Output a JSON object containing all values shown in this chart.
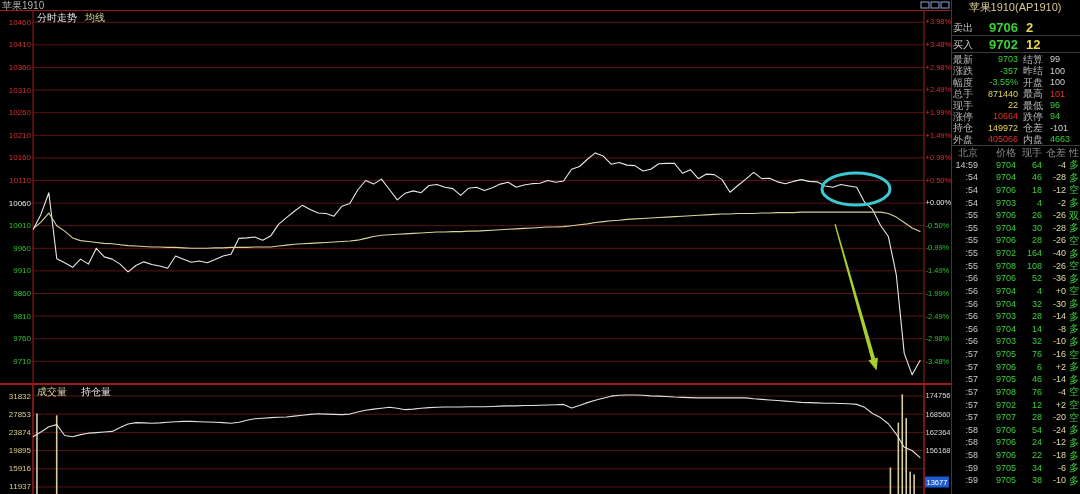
{
  "chart_data": [
    {
      "type": "line",
      "title": "苹果1910",
      "categories": [
        null,
        null,
        null,
        null,
        null,
        null,
        null,
        null,
        null,
        null,
        null,
        null,
        null,
        null,
        null,
        null,
        null,
        null,
        null,
        null,
        null,
        null,
        null,
        null,
        null,
        null,
        null,
        null,
        null,
        null,
        null,
        null,
        null,
        null,
        null,
        null,
        null,
        null,
        null,
        null,
        null,
        null,
        null,
        null,
        null,
        null,
        null,
        null,
        null,
        null,
        null,
        null,
        null,
        null,
        null,
        null,
        null,
        null,
        null,
        null,
        null,
        null,
        null,
        null,
        null,
        null,
        null,
        null,
        null,
        null,
        null,
        null,
        null,
        null,
        null,
        null,
        null,
        null,
        null,
        null,
        null,
        null,
        null,
        null,
        null,
        null,
        null,
        null,
        null,
        null,
        null,
        null,
        null,
        null,
        null,
        null,
        null,
        null,
        null,
        null,
        null,
        null,
        null,
        null,
        null,
        null,
        null,
        null,
        null,
        null,
        null,
        null,
        null
      ],
      "series": [
        {
          "name": "分时走势",
          "color": "#e8e8e8",
          "values": [
            10001,
            10035,
            10083,
            9937,
            9928,
            9918,
            9936,
            9925,
            9960,
            9941,
            9936,
            9925,
            9908,
            9922,
            9930,
            9924,
            9921,
            9916,
            9943,
            9936,
            9929,
            9932,
            9928,
            9935,
            9943,
            9947,
            9982,
            9983,
            9985,
            9978,
            9987,
            10013,
            10028,
            10042,
            10055,
            10046,
            10038,
            10037,
            10031,
            10053,
            10059,
            10089,
            10110,
            10102,
            10113,
            10090,
            10067,
            10082,
            10087,
            10083,
            10099,
            10101,
            10095,
            10092,
            10077,
            10093,
            10095,
            10088,
            10094,
            10102,
            10106,
            10095,
            10100,
            10103,
            10104,
            10110,
            10106,
            10109,
            10135,
            10141,
            10157,
            10171,
            10164,
            10146,
            10150,
            10144,
            10143,
            10131,
            10135,
            10147,
            10148,
            10148,
            10126,
            10134,
            10114,
            10124,
            10123,
            10112,
            10084,
            10099,
            10113,
            10128,
            10114,
            10115,
            10107,
            10103,
            10108,
            10112,
            10108,
            10107,
            10098,
            10095,
            10101,
            10098,
            10095,
            10062,
            10046,
            10011,
            9986,
            9902,
            9728,
            9680,
            9712
          ]
        },
        {
          "name": "均线",
          "color": "#d8d49a",
          "values": [
            10003,
            10018,
            10038,
            10010,
            9998,
            9983,
            9977,
            9975,
            9973,
            9971,
            9970,
            9968,
            9966,
            9965,
            9964,
            9963,
            9963,
            9962,
            9962,
            9961,
            9960,
            9960,
            9960,
            9961,
            9961,
            9962,
            9962,
            9962,
            9963,
            9963,
            9963,
            9965,
            9967,
            9969,
            9970,
            9971,
            9972,
            9973,
            9974,
            9975,
            9976,
            9978,
            9982,
            9986,
            9989,
            9990,
            9991,
            9992,
            9993,
            9994,
            9995,
            9996,
            9996,
            9997,
            9997,
            9998,
            9998,
            9999,
            10000,
            10001,
            10002,
            10003,
            10004,
            10005,
            10006,
            10007,
            10007,
            10008,
            10010,
            10012,
            10014,
            10017,
            10019,
            10021,
            10022,
            10024,
            10025,
            10026,
            10027,
            10028,
            10029,
            10030,
            10031,
            10032,
            10033,
            10034,
            10035,
            10036,
            10036,
            10037,
            10037,
            10037,
            10038,
            10038,
            10039,
            10039,
            10039,
            10040,
            10040,
            10040,
            10040,
            10040,
            10040,
            10040,
            10040,
            10040,
            10040,
            10040,
            10037,
            10029,
            10017,
            10005,
            9997
          ]
        }
      ],
      "ylim": [
        9662,
        10485
      ],
      "yticks": [
        9710,
        9760,
        9810,
        9860,
        9910,
        9960,
        10010,
        10060,
        10110,
        10160,
        10210,
        10260,
        10310,
        10360,
        10410,
        10460
      ],
      "y2lim": [
        -3.96,
        4.22
      ],
      "y2ticks": [
        {
          "value": 3.98,
          "label": "+3.98%"
        },
        {
          "value": 3.48,
          "label": "+3.48%"
        },
        {
          "value": 2.98,
          "label": "+2.98%"
        },
        {
          "value": 2.49,
          "label": "+2.49%"
        },
        {
          "value": 1.99,
          "label": "+1.99%"
        },
        {
          "value": 1.49,
          "label": "+1.49%"
        },
        {
          "value": 0.99,
          "label": "+0.99%"
        },
        {
          "value": 0.5,
          "label": "+0.50%"
        },
        {
          "value": 0,
          "label": "+0.00%"
        },
        {
          "value": -0.5,
          "label": "-0.50%"
        },
        {
          "value": -0.99,
          "label": "-0.99%"
        },
        {
          "value": -1.49,
          "label": "-1.49%"
        },
        {
          "value": -1.99,
          "label": "-1.99%"
        },
        {
          "value": -2.49,
          "label": "-2.49%"
        },
        {
          "value": -2.98,
          "label": "-2.98%"
        },
        {
          "value": -3.48,
          "label": "-3.48%"
        }
      ],
      "grid": "y",
      "legend": "top left"
    },
    {
      "type": "bar",
      "categories": [
        null,
        null,
        null,
        null,
        null,
        null,
        null,
        null,
        null,
        null,
        null,
        null,
        null,
        null,
        null,
        null,
        null,
        null,
        null,
        null,
        null,
        null,
        null,
        null,
        null,
        null,
        null,
        null,
        null,
        null,
        null,
        null,
        null,
        null,
        null,
        null,
        null,
        null,
        null,
        null,
        null,
        null,
        null,
        null,
        null,
        null,
        null,
        null,
        null,
        null,
        null,
        null,
        null,
        null,
        null,
        null,
        null,
        null,
        null,
        null,
        null,
        null,
        null,
        null,
        null,
        null,
        null,
        null,
        null,
        null,
        null,
        null,
        null,
        null,
        null,
        null,
        null,
        null,
        null,
        null,
        null,
        null,
        null,
        null,
        null,
        null,
        null,
        null,
        null,
        null,
        null,
        null,
        null,
        null,
        null,
        null,
        null,
        null,
        null,
        null,
        null,
        null,
        null,
        null,
        null,
        null,
        null,
        null,
        null,
        null,
        null,
        null,
        null,
        null,
        null,
        null,
        null,
        null,
        null,
        null,
        null,
        null,
        null,
        null,
        null,
        null,
        null,
        null,
        null,
        null,
        null,
        null,
        null,
        null,
        null,
        null,
        null,
        null,
        null,
        null,
        null,
        null,
        null,
        null,
        null,
        null,
        null,
        null,
        null,
        null,
        null,
        null,
        null,
        null,
        null,
        null,
        null,
        null,
        null,
        null,
        null,
        null,
        null,
        null,
        null,
        null,
        null,
        null,
        null,
        null,
        null,
        null,
        null,
        null,
        null,
        null,
        null,
        null,
        null,
        null,
        null,
        null,
        null,
        null,
        null,
        null,
        null,
        null,
        null,
        null,
        null,
        null,
        null,
        null,
        null,
        null,
        null,
        null,
        null,
        null,
        null,
        null,
        null,
        null,
        null,
        null,
        null,
        null,
        null,
        null,
        null,
        null,
        null,
        null,
        null,
        null,
        null,
        null,
        null,
        null,
        null,
        null,
        null,
        null,
        null,
        null
      ],
      "series": [
        {
          "name": "成交量",
          "color": "#d8d0a0",
          "values": [
            null,
            28000,
            null,
            null,
            null,
            null,
            27600,
            null,
            null,
            null,
            null,
            null,
            null,
            null,
            null,
            null,
            null,
            null,
            null,
            null,
            null,
            null,
            null,
            null,
            null,
            null,
            null,
            null,
            null,
            null,
            null,
            null,
            null,
            null,
            null,
            null,
            null,
            null,
            null,
            null,
            null,
            null,
            null,
            null,
            null,
            null,
            null,
            null,
            null,
            null,
            null,
            null,
            null,
            null,
            null,
            null,
            null,
            null,
            null,
            null,
            null,
            null,
            null,
            null,
            null,
            null,
            null,
            null,
            null,
            null,
            null,
            null,
            null,
            null,
            null,
            null,
            null,
            null,
            null,
            null,
            null,
            null,
            null,
            null,
            null,
            null,
            null,
            null,
            null,
            null,
            null,
            null,
            null,
            null,
            null,
            null,
            null,
            null,
            null,
            null,
            null,
            null,
            null,
            null,
            null,
            null,
            null,
            null,
            null,
            null,
            null,
            null,
            null,
            null,
            null,
            null,
            null,
            null,
            null,
            null,
            null,
            null,
            null,
            null,
            null,
            null,
            null,
            null,
            null,
            null,
            null,
            null,
            null,
            null,
            null,
            null,
            null,
            null,
            null,
            null,
            null,
            null,
            null,
            null,
            null,
            null,
            null,
            null,
            null,
            null,
            null,
            null,
            null,
            null,
            null,
            null,
            null,
            null,
            null,
            null,
            null,
            null,
            null,
            null,
            null,
            null,
            null,
            null,
            null,
            null,
            null,
            null,
            null,
            null,
            null,
            null,
            null,
            null,
            null,
            null,
            null,
            null,
            null,
            null,
            null,
            null,
            null,
            null,
            null,
            null,
            null,
            null,
            null,
            null,
            null,
            null,
            null,
            null,
            null,
            null,
            null,
            null,
            null,
            null,
            null,
            null,
            null,
            null,
            null,
            null,
            null,
            null,
            null,
            null,
            null,
            null,
            null,
            16200,
            null,
            26000,
            32200,
            27000,
            15300,
            14700,
            null,
            null
          ]
        }
      ],
      "ylim": [
        10400,
        34240
      ],
      "yticks": [
        31832,
        27853,
        23874,
        19895,
        15916,
        11937
      ],
      "grid": "y",
      "legend": "top left"
    },
    {
      "type": "line",
      "categories": [
        null,
        null,
        null,
        null,
        null,
        null,
        null,
        null,
        null,
        null,
        null,
        null,
        null,
        null,
        null,
        null,
        null,
        null,
        null,
        null,
        null,
        null,
        null,
        null,
        null,
        null,
        null,
        null,
        null,
        null,
        null,
        null,
        null,
        null,
        null,
        null,
        null,
        null,
        null,
        null,
        null,
        null,
        null,
        null,
        null,
        null,
        null,
        null,
        null,
        null,
        null,
        null,
        null,
        null,
        null,
        null,
        null,
        null,
        null,
        null,
        null,
        null,
        null,
        null,
        null,
        null,
        null,
        null,
        null,
        null,
        null,
        null,
        null,
        null,
        null,
        null,
        null,
        null,
        null,
        null,
        null,
        null,
        null,
        null,
        null,
        null,
        null,
        null,
        null,
        null,
        null,
        null,
        null,
        null,
        null,
        null,
        null,
        null,
        null,
        null,
        null,
        null,
        null,
        null,
        null,
        null,
        null,
        null,
        null,
        null,
        null,
        null,
        null
      ],
      "series": [
        {
          "name": "持仓量",
          "color": "#e0e0e0",
          "values": [
            160900,
            162500,
            164300,
            165000,
            161300,
            160900,
            161600,
            162100,
            162300,
            162500,
            162700,
            164000,
            165200,
            165700,
            165600,
            165500,
            165600,
            165800,
            166000,
            166100,
            166100,
            166000,
            165900,
            165800,
            165700,
            165500,
            165800,
            166500,
            167000,
            167200,
            167400,
            167500,
            167600,
            167900,
            168200,
            168500,
            168700,
            168600,
            168500,
            168400,
            168600,
            169300,
            169900,
            170300,
            170600,
            170900,
            170600,
            170100,
            170300,
            170600,
            170800,
            170900,
            171000,
            171000,
            171000,
            171100,
            171100,
            171100,
            171200,
            171300,
            171400,
            171400,
            171500,
            171500,
            171600,
            171700,
            171800,
            171900,
            170700,
            171500,
            172500,
            173300,
            174000,
            174700,
            175000,
            175100,
            175100,
            175000,
            174800,
            174700,
            174600,
            174400,
            174300,
            174200,
            174100,
            174100,
            174100,
            174100,
            174100,
            174100,
            174100,
            173800,
            173600,
            173400,
            173200,
            173000,
            172800,
            172600,
            172500,
            172400,
            172300,
            172300,
            172200,
            172100,
            171900,
            170900,
            168800,
            167400,
            165300,
            161800,
            157300,
            156200,
            153800
          ]
        }
      ],
      "ylim": [
        141390,
        178500
      ],
      "yticks": [
        174756,
        168560,
        162364,
        156168
      ],
      "legend": "top left",
      "annotations": [
        "13677"
      ]
    },
    {
      "type": "other",
      "title": "苹果1910(AP1910)",
      "categories": [
        "卖出",
        "买入"
      ],
      "series": [
        {
          "color": "#3ad03a",
          "values": [
            9706,
            9702
          ]
        },
        {
          "color": "#e8d850",
          "values": [
            2,
            12
          ]
        }
      ],
      "data_labels": true
    },
    {
      "type": "other",
      "categories": [
        "最新",
        "涨跌",
        "幅度",
        "总手",
        "现手",
        "涨停",
        "持仓",
        "外盘"
      ],
      "series": [
        {
          "values": [
            9703,
            -357,
            -3.55,
            871440,
            22,
            10664,
            149972,
            405066
          ],
          "value_labels": [
            "9703",
            "-357",
            "-3.55%",
            "871440",
            "22",
            "10664",
            "149972",
            "405066"
          ],
          "colors": [
            "#3ad03a",
            "#3ad03a",
            "#3ad03a",
            "#e8d850",
            "#e8d850",
            "#e03030",
            "#e8d850",
            "#e03030"
          ]
        }
      ]
    },
    {
      "type": "other",
      "categories": [
        "结算",
        "昨结",
        "开盘",
        "最高",
        "最低",
        "跌停",
        "仓差",
        "内盘"
      ],
      "series": [
        {
          "values": [
            99,
            100,
            100,
            101,
            96,
            94,
            -101,
            4663
          ],
          "colors": [
            "#d0d0d0",
            "#d0d0d0",
            "#d0d0d0",
            "#e03030",
            "#3ad03a",
            "#3ad03a",
            "#d0d0d0",
            "#3ad03a"
          ]
        }
      ],
      "data_labels": true
    },
    {
      "type": "heatmap",
      "ylabel": "北京",
      "categories": [
        "价格",
        "现手",
        "仓差",
        "性"
      ],
      "y_categories": [
        "14:59",
        ":54",
        ":54",
        ":54",
        ":55",
        ":55",
        ":55",
        ":55",
        ":55",
        ":56",
        ":56",
        ":56",
        ":56",
        ":56",
        ":56",
        ":57",
        ":57",
        ":57",
        ":57",
        ":57",
        ":57",
        ":58",
        ":58",
        ":58",
        ":59",
        ":59"
      ],
      "cells": [
        [
          9704,
          64,
          -4,
          null
        ],
        [
          9704,
          46,
          -28,
          null
        ],
        [
          9706,
          18,
          -12,
          null
        ],
        [
          9703,
          4,
          -2,
          null
        ],
        [
          9706,
          26,
          -26,
          null
        ],
        [
          9704,
          30,
          -28,
          null
        ],
        [
          9706,
          28,
          -26,
          null
        ],
        [
          9702,
          164,
          -40,
          null
        ],
        [
          9708,
          108,
          -26,
          null
        ],
        [
          9706,
          52,
          -36,
          null
        ],
        [
          9704,
          4,
          0,
          null
        ],
        [
          9704,
          32,
          -30,
          null
        ],
        [
          9703,
          28,
          -14,
          null
        ],
        [
          9704,
          14,
          -8,
          null
        ],
        [
          9703,
          32,
          -10,
          null
        ],
        [
          9705,
          76,
          -16,
          null
        ],
        [
          9706,
          6,
          2,
          null
        ],
        [
          9705,
          46,
          -14,
          null
        ],
        [
          9708,
          76,
          -4,
          null
        ],
        [
          9702,
          12,
          2,
          null
        ],
        [
          9707,
          28,
          -20,
          null
        ],
        [
          9706,
          54,
          -24,
          null
        ],
        [
          9706,
          24,
          -12,
          null
        ],
        [
          9706,
          22,
          -18,
          null
        ],
        [
          9705,
          34,
          -6,
          null
        ],
        [
          9705,
          38,
          -10,
          null
        ]
      ],
      "cell_labels": [
        [
          "9704",
          "64",
          "-4",
          "多"
        ],
        [
          "9704",
          "46",
          "-28",
          "多"
        ],
        [
          "9706",
          "18",
          "-12",
          "空"
        ],
        [
          "9703",
          "4",
          "-2",
          "多"
        ],
        [
          "9706",
          "26",
          "-26",
          "双"
        ],
        [
          "9704",
          "30",
          "-28",
          "多"
        ],
        [
          "9706",
          "28",
          "-26",
          "空"
        ],
        [
          "9702",
          "164",
          "-40",
          "多"
        ],
        [
          "9708",
          "108",
          "-26",
          "空"
        ],
        [
          "9706",
          "52",
          "-36",
          "多"
        ],
        [
          "9704",
          "4",
          "+0",
          "空"
        ],
        [
          "9704",
          "32",
          "-30",
          "多"
        ],
        [
          "9703",
          "28",
          "-14",
          "多"
        ],
        [
          "9704",
          "14",
          "-8",
          "多"
        ],
        [
          "9703",
          "32",
          "-10",
          "多"
        ],
        [
          "9705",
          "76",
          "-16",
          "空"
        ],
        [
          "9706",
          "6",
          "+2",
          "多"
        ],
        [
          "9705",
          "46",
          "-14",
          "多"
        ],
        [
          "9708",
          "76",
          "-4",
          "空"
        ],
        [
          "9702",
          "12",
          "+2",
          "空"
        ],
        [
          "9707",
          "28",
          "-20",
          "空"
        ],
        [
          "9706",
          "54",
          "-24",
          "多"
        ],
        [
          "9706",
          "24",
          "-12",
          "多"
        ],
        [
          "9706",
          "22",
          "-18",
          "多"
        ],
        [
          "9705",
          "34",
          "-6",
          "多"
        ],
        [
          "9705",
          "38",
          "-10",
          "多"
        ]
      ]
    }
  ]
}
